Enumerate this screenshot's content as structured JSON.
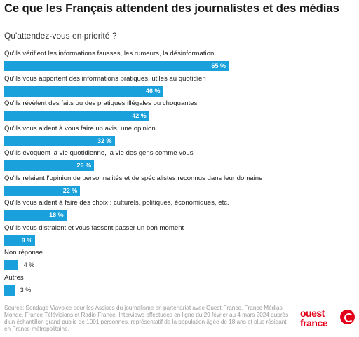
{
  "header": {
    "title": "Ce que les Français attendent des journalistes et des médias",
    "subtitle": "Qu'attendez-vous en priorité ?"
  },
  "chart_data": {
    "type": "bar",
    "orientation": "horizontal",
    "categories": [
      "Qu'ils vérifient les informations fausses, les rumeurs, la désinformation",
      "Qu'ils vous apportent des informations pratiques, utiles au quotidien",
      "Qu'ils révèlent des faits ou des pratiques illégales ou choquantes",
      "Qu'ils vous aident à vous faire un avis, une opinion",
      "Qu'ils évoquent la vie quotidienne, la vie des gens comme vous",
      "Qu'ils relaient l'opinion de personnalités et de spécialistes reconnus dans leur domaine",
      "Qu'ils vous aident à faire des choix : culturels, politiques, économiques, etc.",
      "Qu'ils vous distraient et vous fassent passer un bon moment",
      "Non réponse",
      "Autres"
    ],
    "values": [
      65,
      46,
      42,
      32,
      26,
      22,
      18,
      9,
      4,
      3
    ],
    "value_labels": [
      "65 %",
      "46 %",
      "42 %",
      "32 %",
      "26 %",
      "22 %",
      "18 %",
      "9 %",
      "4 %",
      "3 %"
    ],
    "xlim": [
      0,
      100
    ],
    "bar_color": "#1aa1dc",
    "grid": false,
    "legend": "none"
  },
  "footer": {
    "source": "Source: Sondage Viavoice pour les Assises du journalisme en partenariat avec Ouest-France, France Médias Monde, France Télévisions et Radio France. Interviews effectuées en ligne du 29 février au 4 mars 2024 auprès d'un échantillon grand public de 1001 personnes, représentatif de la population âgée de 18 ans et plus résidant en France métropolitaine.",
    "logo_line1": "ouest",
    "logo_line2": "france",
    "logo_color": "#e2001a",
    "logo_icon": "ouest-france-logo-icon"
  }
}
